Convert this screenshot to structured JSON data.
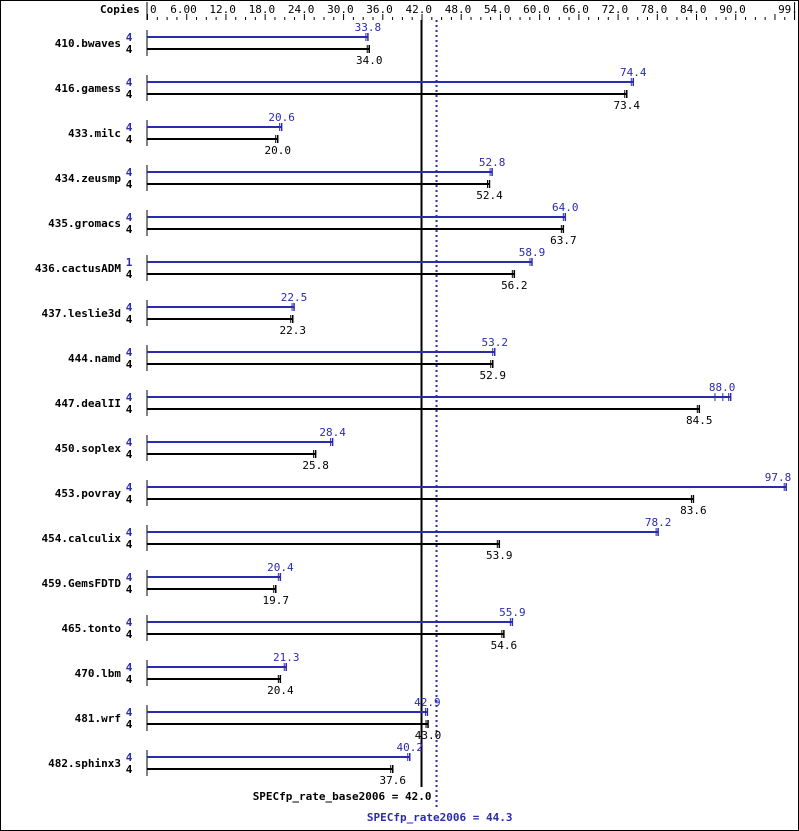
{
  "colors": {
    "peak": "#2b2bb0",
    "base": "#000000",
    "border": "#000000"
  },
  "chart_data": {
    "type": "bar",
    "orientation": "horizontal",
    "header_label": "Copies",
    "xlim": [
      0,
      99.0
    ],
    "ticks": [
      "0",
      "6.00",
      "12.0",
      "18.0",
      "24.0",
      "30.0",
      "36.0",
      "42.0",
      "48.0",
      "54.0",
      "60.0",
      "66.0",
      "72.0",
      "78.0",
      "84.0",
      "90.0",
      "99.0"
    ],
    "tick_values": [
      0,
      6,
      12,
      18,
      24,
      30,
      36,
      42,
      48,
      54,
      60,
      66,
      72,
      78,
      84,
      90,
      99
    ],
    "minor_tick_step": 1.5,
    "categories": [
      "410.bwaves",
      "416.gamess",
      "433.milc",
      "434.zeusmp",
      "435.gromacs",
      "436.cactusADM",
      "437.leslie3d",
      "444.namd",
      "447.dealII",
      "450.soplex",
      "453.povray",
      "454.calculix",
      "459.GemsFDTD",
      "465.tonto",
      "470.lbm",
      "481.wrf",
      "482.sphinx3"
    ],
    "series": [
      {
        "key": "peak",
        "copies": [
          "4",
          "4",
          "4",
          "4",
          "4",
          "1",
          "4",
          "4",
          "4",
          "4",
          "4",
          "4",
          "4",
          "4",
          "4",
          "4",
          "4"
        ],
        "values": [
          33.8,
          74.4,
          20.6,
          52.8,
          64.0,
          58.9,
          22.5,
          53.2,
          88.0,
          28.4,
          97.8,
          78.2,
          20.4,
          55.9,
          21.3,
          42.9,
          40.2
        ],
        "labels": [
          "33.8",
          "74.4",
          "20.6",
          "52.8",
          "64.0",
          "58.9",
          "22.5",
          "53.2",
          "88.0",
          "28.4",
          "97.8",
          "78.2",
          "20.4",
          "55.9",
          "21.3",
          "42.9",
          "40.2"
        ]
      },
      {
        "key": "base",
        "copies": [
          "4",
          "4",
          "4",
          "4",
          "4",
          "4",
          "4",
          "4",
          "4",
          "4",
          "4",
          "4",
          "4",
          "4",
          "4",
          "4",
          "4"
        ],
        "values": [
          34.0,
          73.4,
          20.0,
          52.4,
          63.7,
          56.2,
          22.3,
          52.9,
          84.5,
          25.8,
          83.6,
          53.9,
          19.7,
          54.6,
          20.4,
          43.0,
          37.6
        ],
        "labels": [
          "34.0",
          "73.4",
          "20.0",
          "52.4",
          "63.7",
          "56.2",
          "22.3",
          "52.9",
          "84.5",
          "25.8",
          "83.6",
          "53.9",
          "19.7",
          "54.6",
          "20.4",
          "43.0",
          "37.6"
        ]
      }
    ],
    "reference_lines": [
      {
        "key": "base",
        "value": 42.0,
        "label": "SPECfp_rate_base2006 = 42.0",
        "style": "solid"
      },
      {
        "key": "peak",
        "value": 44.3,
        "label": "SPECfp_rate2006 = 44.3",
        "style": "dotted"
      }
    ]
  }
}
